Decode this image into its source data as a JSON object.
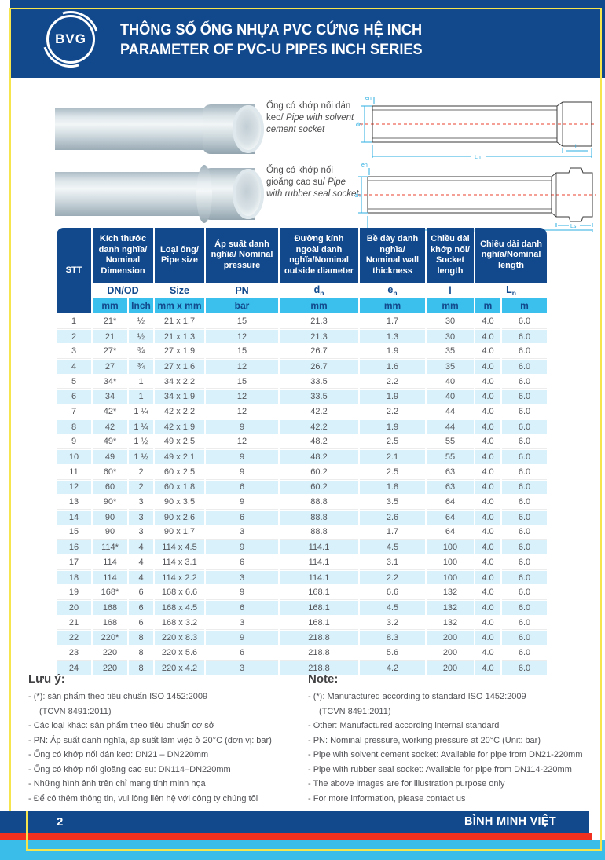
{
  "page": {
    "logo": "BVG",
    "title_vi": "THÔNG SỐ ỐNG NHỰA PVC CỨNG HỆ INCH",
    "title_en": "PARAMETER OF PVC-U PIPES INCH SERIES"
  },
  "figures": [
    {
      "vi": "Ống có khớp nối dán keo/",
      "en": "Pipe with solvent cement socket"
    },
    {
      "vi": "Ống có khớp nối gioăng cao su/",
      "en": "Pipe with rubber seal socket"
    }
  ],
  "diagrams": {
    "d1": {
      "labels": {
        "e": "en",
        "d": "dn",
        "socket": "l",
        "length": "Ln"
      }
    },
    "d2": {
      "labels": {
        "e": "en",
        "d": "dn",
        "socket": "Ls",
        "length": "Ln"
      }
    }
  },
  "table": {
    "header_groups": [
      {
        "label": "STT",
        "rowspan": 3
      },
      {
        "label": "Kích thước danh nghĩa/ Nominal Dimension",
        "colspan": 2
      },
      {
        "label": "Loại ống/ Pipe size"
      },
      {
        "label": "Áp suất danh nghĩa/ Nominal pressure"
      },
      {
        "label": "Đường kính ngoài danh nghĩa/Nominal outside diameter"
      },
      {
        "label": "Bề dày danh nghĩa/ Nominal wall thickness"
      },
      {
        "label": "Chiều dài khớp nối/ Socket length"
      },
      {
        "label": "Chiều dài danh nghĩa/Nominal length",
        "colspan": 2
      }
    ],
    "sub_headers": [
      {
        "main": "DN/OD",
        "colspan": 2
      },
      {
        "main": "Size"
      },
      {
        "main": "PN"
      },
      {
        "main": "d",
        "sub": "n"
      },
      {
        "main": "e",
        "sub": "n"
      },
      {
        "main": "l"
      },
      {
        "main": "L",
        "sub": "n",
        "colspan": 2
      }
    ],
    "units": [
      "mm",
      "Inch",
      "mm x mm",
      "bar",
      "mm",
      "mm",
      "mm",
      "m",
      "m"
    ],
    "rows": [
      [
        "1",
        "21*",
        "½",
        "21 x 1.7",
        "15",
        "21.3",
        "1.7",
        "30",
        "4.0",
        "6.0"
      ],
      [
        "2",
        "21",
        "½",
        "21 x 1.3",
        "12",
        "21.3",
        "1.3",
        "30",
        "4.0",
        "6.0"
      ],
      [
        "3",
        "27*",
        "¾",
        "27 x 1.9",
        "15",
        "26.7",
        "1.9",
        "35",
        "4.0",
        "6.0"
      ],
      [
        "4",
        "27",
        "¾",
        "27 x 1.6",
        "12",
        "26.7",
        "1.6",
        "35",
        "4.0",
        "6.0"
      ],
      [
        "5",
        "34*",
        "1",
        "34 x 2.2",
        "15",
        "33.5",
        "2.2",
        "40",
        "4.0",
        "6.0"
      ],
      [
        "6",
        "34",
        "1",
        "34 x 1.9",
        "12",
        "33.5",
        "1.9",
        "40",
        "4.0",
        "6.0"
      ],
      [
        "7",
        "42*",
        "1 ¼",
        "42 x 2.2",
        "12",
        "42.2",
        "2.2",
        "44",
        "4.0",
        "6.0"
      ],
      [
        "8",
        "42",
        "1 ¼",
        "42 x 1.9",
        "9",
        "42.2",
        "1.9",
        "44",
        "4.0",
        "6.0"
      ],
      [
        "9",
        "49*",
        "1 ½",
        "49 x 2.5",
        "12",
        "48.2",
        "2.5",
        "55",
        "4.0",
        "6.0"
      ],
      [
        "10",
        "49",
        "1 ½",
        "49 x 2.1",
        "9",
        "48.2",
        "2.1",
        "55",
        "4.0",
        "6.0"
      ],
      [
        "11",
        "60*",
        "2",
        "60 x 2.5",
        "9",
        "60.2",
        "2.5",
        "63",
        "4.0",
        "6.0"
      ],
      [
        "12",
        "60",
        "2",
        "60 x 1.8",
        "6",
        "60.2",
        "1.8",
        "63",
        "4.0",
        "6.0"
      ],
      [
        "13",
        "90*",
        "3",
        "90 x 3.5",
        "9",
        "88.8",
        "3.5",
        "64",
        "4.0",
        "6.0"
      ],
      [
        "14",
        "90",
        "3",
        "90 x 2.6",
        "6",
        "88.8",
        "2.6",
        "64",
        "4.0",
        "6.0"
      ],
      [
        "15",
        "90",
        "3",
        "90 x 1.7",
        "3",
        "88.8",
        "1.7",
        "64",
        "4.0",
        "6.0"
      ],
      [
        "16",
        "114*",
        "4",
        "114 x 4.5",
        "9",
        "114.1",
        "4.5",
        "100",
        "4.0",
        "6.0"
      ],
      [
        "17",
        "114",
        "4",
        "114 x 3.1",
        "6",
        "114.1",
        "3.1",
        "100",
        "4.0",
        "6.0"
      ],
      [
        "18",
        "114",
        "4",
        "114 x 2.2",
        "3",
        "114.1",
        "2.2",
        "100",
        "4.0",
        "6.0"
      ],
      [
        "19",
        "168*",
        "6",
        "168 x 6.6",
        "9",
        "168.1",
        "6.6",
        "132",
        "4.0",
        "6.0"
      ],
      [
        "20",
        "168",
        "6",
        "168 x 4.5",
        "6",
        "168.1",
        "4.5",
        "132",
        "4.0",
        "6.0"
      ],
      [
        "21",
        "168",
        "6",
        "168 x 3.2",
        "3",
        "168.1",
        "3.2",
        "132",
        "4.0",
        "6.0"
      ],
      [
        "22",
        "220*",
        "8",
        "220 x 8.3",
        "9",
        "218.8",
        "8.3",
        "200",
        "4.0",
        "6.0"
      ],
      [
        "23",
        "220",
        "8",
        "220 x 5.6",
        "6",
        "218.8",
        "5.6",
        "200",
        "4.0",
        "6.0"
      ],
      [
        "24",
        "220",
        "8",
        "220 x 4.2",
        "3",
        "218.8",
        "4.2",
        "200",
        "4.0",
        "6.0"
      ]
    ]
  },
  "notes_left": {
    "heading": "Lưu ý:",
    "items": [
      {
        "text": "(*): sản phẩm theo tiêu chuẩn ISO 1452:2009",
        "dash": true
      },
      {
        "text": "(TCVN 8491:2011)",
        "dash": false
      },
      {
        "text": "Các loại khác: sản phẩm theo tiêu chuẩn cơ sở",
        "dash": true
      },
      {
        "text": "PN: Áp suất danh nghĩa, áp suất làm việc ở 20°C  (đơn vị: bar)",
        "dash": true
      },
      {
        "text": "Ống có khớp nối dán keo: DN21 – DN220mm",
        "dash": true
      },
      {
        "text": "Ống có khớp nối gioăng cao su: DN114–DN220mm",
        "dash": true
      },
      {
        "text": "Những hình ảnh trên chỉ mang tính minh họa",
        "dash": true
      },
      {
        "text": "Để có thêm thông tin, vui lòng liên hệ với công ty chúng tôi",
        "dash": true
      }
    ]
  },
  "notes_right": {
    "heading": "Note:",
    "items": [
      {
        "text": "(*): Manufactured according to standard ISO 1452:2009",
        "dash": true
      },
      {
        "text": "(TCVN 8491:2011)",
        "dash": false
      },
      {
        "text": "Other: Manufactured according internal standard",
        "dash": true
      },
      {
        "text": "PN: Nominal pressure, working pressure at 20°C (Unit: bar)",
        "dash": true
      },
      {
        "text": "Pipe with solvent cement socket: Available for pipe from DN21-220mm",
        "dash": true
      },
      {
        "text": "Pipe with rubber seal socket: Available for pipe from DN114-220mm",
        "dash": true
      },
      {
        "text": "The above images are for illustration purpose only",
        "dash": true
      },
      {
        "text": "For more information, please contact us",
        "dash": true
      }
    ]
  },
  "footer": {
    "page_number": "2",
    "brand": "BÌNH MINH VIỆT"
  },
  "colors": {
    "primary_blue": "#12498c",
    "cyan": "#3bbfec",
    "light_row_blue": "#d9f1fb",
    "red": "#f2301f",
    "frame_yellow": "#f7e54d",
    "table_text": "#55565a"
  }
}
